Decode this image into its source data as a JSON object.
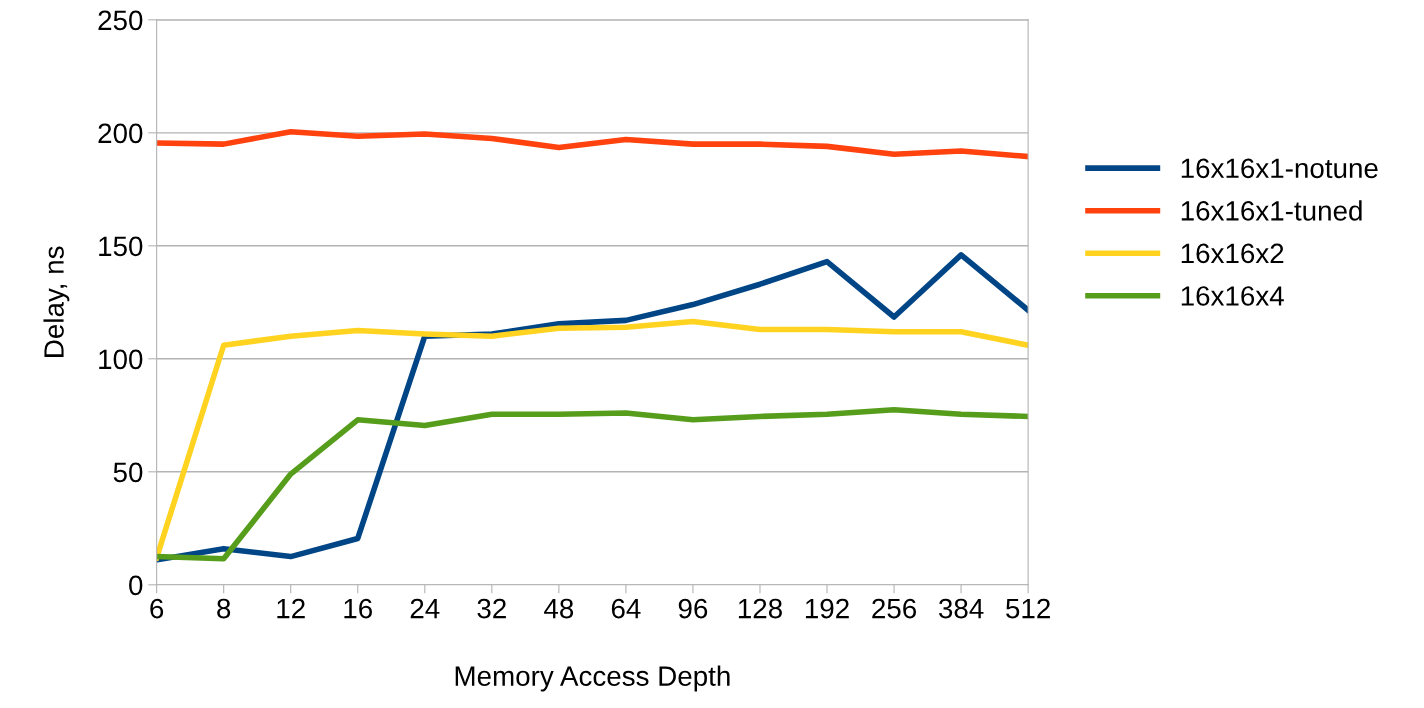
{
  "chart_data": {
    "type": "line",
    "xlabel": "Memory Access Depth",
    "ylabel": "Delay, ns",
    "categories": [
      "6",
      "8",
      "12",
      "16",
      "24",
      "32",
      "48",
      "64",
      "96",
      "128",
      "192",
      "256",
      "384",
      "512"
    ],
    "series": [
      {
        "name": "16x16x1-notune",
        "color": "#004586",
        "values": [
          11,
          16,
          12.5,
          20.5,
          110,
          111,
          115.5,
          117,
          124,
          133,
          143,
          118.5,
          146,
          121.5
        ]
      },
      {
        "name": "16x16x1-tuned",
        "color": "#ff420e",
        "values": [
          195.5,
          195,
          200.5,
          198.5,
          199.5,
          197.5,
          193.5,
          197,
          195,
          195,
          194,
          190.5,
          192,
          189.5
        ]
      },
      {
        "name": "16x16x2",
        "color": "#ffd320",
        "values": [
          12,
          106,
          110,
          112.5,
          111,
          110,
          113.5,
          114,
          116.5,
          113,
          113,
          112,
          112,
          106
        ]
      },
      {
        "name": "16x16x4",
        "color": "#579d1c",
        "values": [
          12.5,
          11.5,
          49,
          73,
          70.5,
          75.5,
          75.5,
          76,
          73,
          74.5,
          75.5,
          77.5,
          75.5,
          74.5
        ]
      }
    ],
    "ylim": [
      0,
      250
    ],
    "yticks": [
      0,
      50,
      100,
      150,
      200,
      250
    ],
    "grid": "y",
    "legend": "right",
    "marker": "none",
    "line_style": "solid"
  }
}
